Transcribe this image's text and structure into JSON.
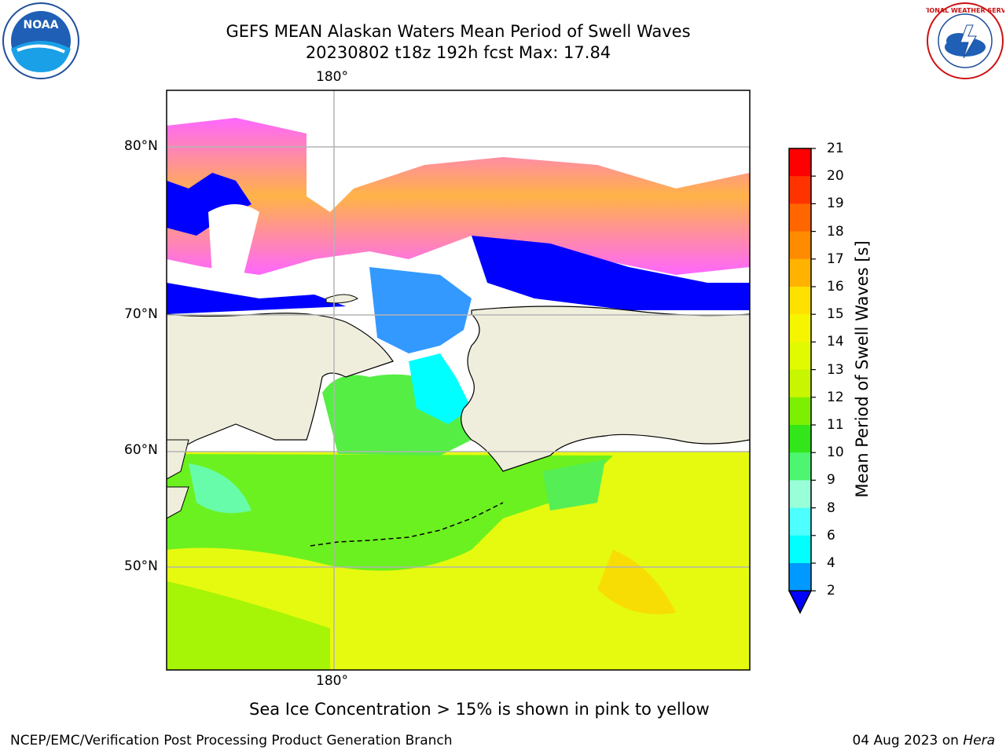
{
  "title": {
    "line1": "GEFS MEAN Alaskan Waters Mean Period of Swell Waves",
    "line2": "20230802 t18z 192h fcst   Max: 17.84"
  },
  "map": {
    "lon_labels": [
      "180°",
      "180°"
    ],
    "lat_labels": [
      "80°N",
      "70°N",
      "60°N",
      "50°N"
    ],
    "colors": {
      "land": "#efeedd",
      "ice_pink": "#ff66ff",
      "ice_orange": "#ffb347",
      "low_blue": "#0000ff"
    }
  },
  "colorbar": {
    "title": "Mean Period of Swell Waves [s]",
    "ticks": [
      "21",
      "20",
      "19",
      "18",
      "17",
      "16",
      "15",
      "14",
      "13",
      "12",
      "11",
      "10",
      "9",
      "8",
      "6",
      "4",
      "2"
    ],
    "colors": [
      "#ff0000",
      "#ff3300",
      "#ff6600",
      "#ff8c00",
      "#ffb300",
      "#ffe100",
      "#f5f500",
      "#e1fa00",
      "#c8f500",
      "#7cf000",
      "#33e61a",
      "#4df570",
      "#99ffd9",
      "#4dffff",
      "#00ffff",
      "#0099ff",
      "#0000ff"
    ],
    "extend_color": "#0000ff"
  },
  "note": "Sea Ice Concentration > 15% is shown in pink to yellow",
  "footer": {
    "left": "NCEP/EMC/Verification Post Processing Product Generation Branch",
    "date": "04 Aug 2023 on",
    "machine": "Hera"
  },
  "logos": {
    "noaa": "NOAA",
    "nws": "NATIONAL WEATHER SERVICE"
  }
}
